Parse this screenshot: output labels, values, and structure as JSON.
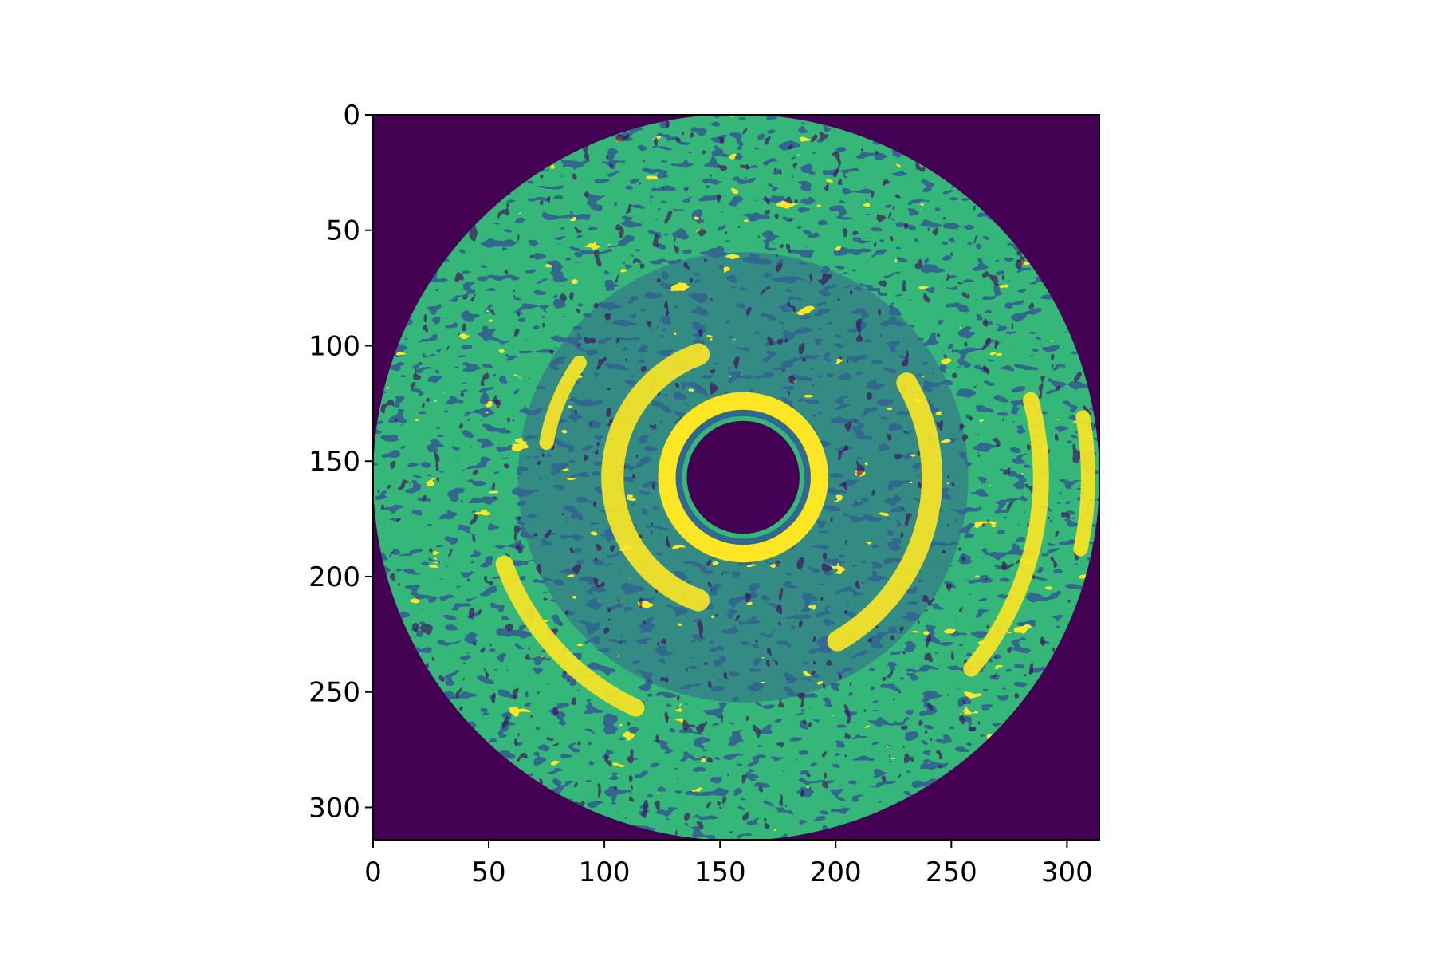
{
  "chart_data": {
    "type": "heatmap",
    "title": "",
    "xlabel": "",
    "ylabel": "",
    "xlim": [
      0,
      314
    ],
    "ylim": [
      314,
      0
    ],
    "x_ticks": [
      0,
      50,
      100,
      150,
      200,
      250,
      300
    ],
    "y_ticks": [
      0,
      50,
      100,
      150,
      200,
      250,
      300
    ],
    "x_tick_labels": [
      "0",
      "50",
      "100",
      "150",
      "200",
      "250",
      "300"
    ],
    "y_tick_labels": [
      "0",
      "50",
      "100",
      "150",
      "200",
      "250",
      "300"
    ],
    "colormap": "viridis",
    "levels": [
      0,
      1,
      2,
      3
    ],
    "level_colors": [
      "#440154",
      "#31688e",
      "#35b779",
      "#fde725"
    ],
    "image_size": [
      314,
      314
    ],
    "circle_center": [
      157,
      157
    ],
    "circle_radius": 157,
    "inner_lumen_center": [
      160,
      157
    ],
    "inner_lumen_radius": 23,
    "description_regions": [
      {
        "name": "outer-ring",
        "level": 2
      },
      {
        "name": "mid-ring",
        "level": 1
      },
      {
        "name": "bright-bands",
        "level": 3
      },
      {
        "name": "lumen",
        "level": 0
      }
    ]
  }
}
